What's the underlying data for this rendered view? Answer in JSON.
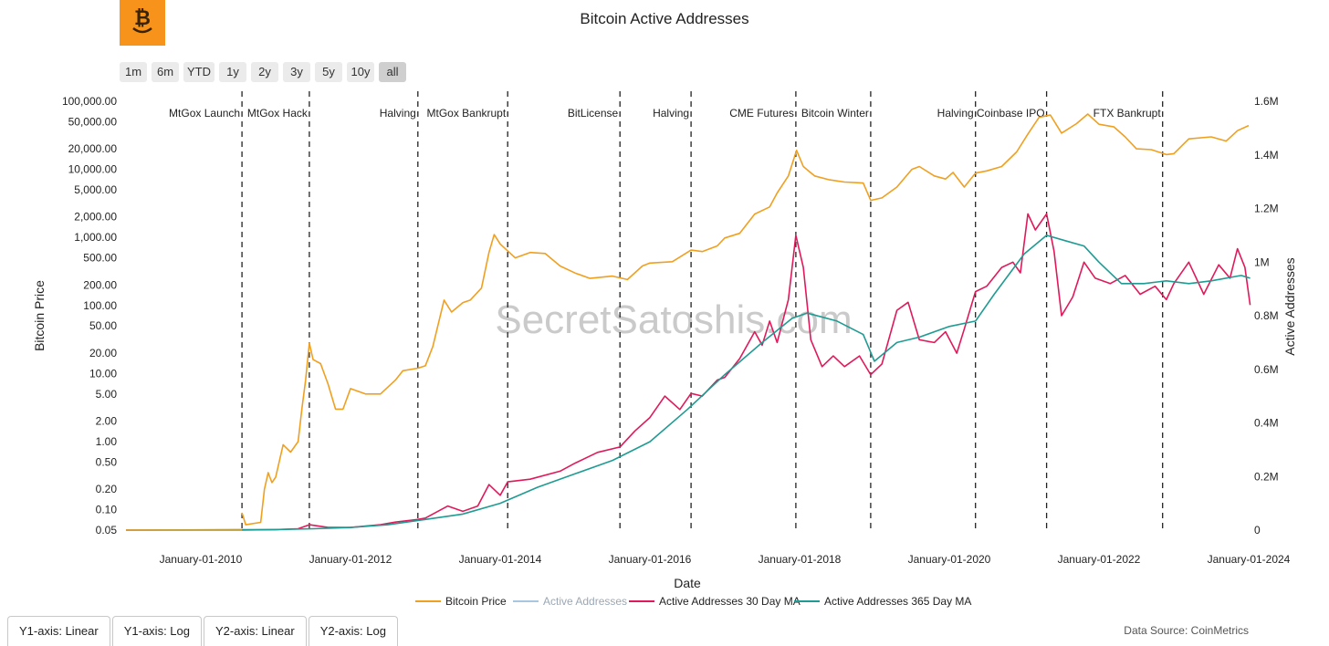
{
  "range_buttons": [
    "1m",
    "6m",
    "YTD",
    "1y",
    "2y",
    "3y",
    "5y",
    "10y",
    "all"
  ],
  "active_range": "all",
  "axis_buttons": [
    "Y1-axis: Linear",
    "Y1-axis: Log",
    "Y2-axis: Linear",
    "Y2-axis: Log"
  ],
  "source": "Data Source: CoinMetrics",
  "watermark": "SecretSatoshis.com",
  "colors": {
    "price": "#f0a020",
    "active": "#a9c6e0",
    "ma30": "#e0195a",
    "ma365": "#1f9b93",
    "logo": "#f7931a"
  },
  "chart_data": {
    "type": "line",
    "title": "Bitcoin Active Addresses",
    "xlabel": "Date",
    "ylabel": "Bitcoin Price",
    "y2label": "Active Addresses",
    "xlim": [
      2009.0,
      2024.0
    ],
    "y_scale": "log",
    "y_ticks": [
      {
        "v": 100000,
        "label": "100,000.00"
      },
      {
        "v": 50000,
        "label": "50,000.00"
      },
      {
        "v": 20000,
        "label": "20,000.00"
      },
      {
        "v": 10000,
        "label": "10,000.00"
      },
      {
        "v": 5000,
        "label": "5,000.00"
      },
      {
        "v": 2000,
        "label": "2,000.00"
      },
      {
        "v": 1000,
        "label": "1,000.00"
      },
      {
        "v": 500,
        "label": "500.00"
      },
      {
        "v": 200,
        "label": "200.00"
      },
      {
        "v": 100,
        "label": "100.00"
      },
      {
        "v": 50,
        "label": "50.00"
      },
      {
        "v": 20,
        "label": "20.00"
      },
      {
        "v": 10,
        "label": "10.00"
      },
      {
        "v": 5,
        "label": "5.00"
      },
      {
        "v": 2,
        "label": "2.00"
      },
      {
        "v": 1,
        "label": "1.00"
      },
      {
        "v": 0.5,
        "label": "0.50"
      },
      {
        "v": 0.2,
        "label": "0.20"
      },
      {
        "v": 0.1,
        "label": "0.10"
      },
      {
        "v": 0.05,
        "label": "0.05"
      }
    ],
    "y2_ticks": [
      {
        "v": 0,
        "label": "0"
      },
      {
        "v": 200000,
        "label": "0.2M"
      },
      {
        "v": 400000,
        "label": "0.4M"
      },
      {
        "v": 600000,
        "label": "0.6M"
      },
      {
        "v": 800000,
        "label": "0.8M"
      },
      {
        "v": 1000000,
        "label": "1M"
      },
      {
        "v": 1200000,
        "label": "1.2M"
      },
      {
        "v": 1400000,
        "label": "1.4M"
      },
      {
        "v": 1600000,
        "label": "1.6M"
      }
    ],
    "x_ticks": [
      {
        "v": 2010.0,
        "label": "January-01-2010"
      },
      {
        "v": 2012.0,
        "label": "January-01-2012"
      },
      {
        "v": 2014.0,
        "label": "January-01-2014"
      },
      {
        "v": 2016.0,
        "label": "January-01-2016"
      },
      {
        "v": 2018.0,
        "label": "January-01-2018"
      },
      {
        "v": 2020.0,
        "label": "January-01-2020"
      },
      {
        "v": 2022.0,
        "label": "January-01-2022"
      },
      {
        "v": 2024.0,
        "label": "January-01-2024"
      }
    ],
    "events": [
      {
        "x": 2010.55,
        "label": "MtGox Launch"
      },
      {
        "x": 2011.45,
        "label": "MtGox Hack"
      },
      {
        "x": 2012.9,
        "label": "Halving"
      },
      {
        "x": 2014.1,
        "label": "MtGox Bankrupt"
      },
      {
        "x": 2015.6,
        "label": "BitLicense"
      },
      {
        "x": 2016.55,
        "label": "Halving"
      },
      {
        "x": 2017.95,
        "label": "CME Futures"
      },
      {
        "x": 2018.95,
        "label": "Bitcoin Winter"
      },
      {
        "x": 2020.35,
        "label": "Halving"
      },
      {
        "x": 2021.3,
        "label": "Coinbase IPO"
      },
      {
        "x": 2022.85,
        "label": "FTX Bankrupt"
      }
    ],
    "series": [
      {
        "name": "Bitcoin Price",
        "axis": "y1",
        "points": [
          [
            2010.55,
            0.09
          ],
          [
            2010.6,
            0.06
          ],
          [
            2010.8,
            0.065
          ],
          [
            2010.85,
            0.2
          ],
          [
            2010.9,
            0.35
          ],
          [
            2010.95,
            0.25
          ],
          [
            2011.0,
            0.3
          ],
          [
            2011.1,
            0.9
          ],
          [
            2011.2,
            0.7
          ],
          [
            2011.3,
            1.0
          ],
          [
            2011.35,
            3
          ],
          [
            2011.4,
            8
          ],
          [
            2011.45,
            28
          ],
          [
            2011.5,
            16
          ],
          [
            2011.6,
            14
          ],
          [
            2011.7,
            7
          ],
          [
            2011.8,
            3
          ],
          [
            2011.9,
            3
          ],
          [
            2012.0,
            6
          ],
          [
            2012.2,
            5
          ],
          [
            2012.4,
            5
          ],
          [
            2012.6,
            8
          ],
          [
            2012.7,
            11
          ],
          [
            2012.9,
            12
          ],
          [
            2013.0,
            13
          ],
          [
            2013.1,
            25
          ],
          [
            2013.25,
            120
          ],
          [
            2013.35,
            80
          ],
          [
            2013.5,
            110
          ],
          [
            2013.6,
            120
          ],
          [
            2013.75,
            180
          ],
          [
            2013.85,
            600
          ],
          [
            2013.92,
            1100
          ],
          [
            2014.0,
            800
          ],
          [
            2014.2,
            500
          ],
          [
            2014.4,
            600
          ],
          [
            2014.6,
            580
          ],
          [
            2014.8,
            380
          ],
          [
            2015.0,
            300
          ],
          [
            2015.2,
            250
          ],
          [
            2015.5,
            270
          ],
          [
            2015.7,
            240
          ],
          [
            2015.9,
            380
          ],
          [
            2016.0,
            420
          ],
          [
            2016.3,
            440
          ],
          [
            2016.55,
            650
          ],
          [
            2016.7,
            620
          ],
          [
            2016.9,
            750
          ],
          [
            2017.0,
            980
          ],
          [
            2017.2,
            1150
          ],
          [
            2017.4,
            2200
          ],
          [
            2017.6,
            2800
          ],
          [
            2017.7,
            4500
          ],
          [
            2017.85,
            8000
          ],
          [
            2017.96,
            19000
          ],
          [
            2018.05,
            11000
          ],
          [
            2018.2,
            8000
          ],
          [
            2018.4,
            7000
          ],
          [
            2018.6,
            6500
          ],
          [
            2018.85,
            6300
          ],
          [
            2018.95,
            3500
          ],
          [
            2019.1,
            3800
          ],
          [
            2019.3,
            5500
          ],
          [
            2019.5,
            10000
          ],
          [
            2019.6,
            11000
          ],
          [
            2019.8,
            8000
          ],
          [
            2019.95,
            7200
          ],
          [
            2020.05,
            9000
          ],
          [
            2020.2,
            5500
          ],
          [
            2020.35,
            8800
          ],
          [
            2020.5,
            9500
          ],
          [
            2020.7,
            11000
          ],
          [
            2020.9,
            18000
          ],
          [
            2021.05,
            33000
          ],
          [
            2021.2,
            58000
          ],
          [
            2021.35,
            63000
          ],
          [
            2021.5,
            34000
          ],
          [
            2021.7,
            47000
          ],
          [
            2021.85,
            65000
          ],
          [
            2022.0,
            46000
          ],
          [
            2022.2,
            42000
          ],
          [
            2022.35,
            30000
          ],
          [
            2022.5,
            20000
          ],
          [
            2022.7,
            19500
          ],
          [
            2022.9,
            16500
          ],
          [
            2023.0,
            17000
          ],
          [
            2023.2,
            28000
          ],
          [
            2023.5,
            30000
          ],
          [
            2023.7,
            26000
          ],
          [
            2023.85,
            37000
          ],
          [
            2024.0,
            44000
          ]
        ]
      },
      {
        "name": "Active Addresses",
        "axis": "y2",
        "points": []
      },
      {
        "name": "Active Addresses 30 Day MA",
        "axis": "y2",
        "points": [
          [
            2009.0,
            0
          ],
          [
            2010.5,
            0
          ],
          [
            2011.0,
            2000
          ],
          [
            2011.3,
            5000
          ],
          [
            2011.45,
            20000
          ],
          [
            2011.7,
            10000
          ],
          [
            2012.0,
            10000
          ],
          [
            2012.4,
            20000
          ],
          [
            2012.6,
            30000
          ],
          [
            2012.9,
            40000
          ],
          [
            2013.0,
            45000
          ],
          [
            2013.3,
            90000
          ],
          [
            2013.5,
            70000
          ],
          [
            2013.7,
            90000
          ],
          [
            2013.85,
            170000
          ],
          [
            2014.0,
            130000
          ],
          [
            2014.1,
            180000
          ],
          [
            2014.4,
            190000
          ],
          [
            2014.8,
            220000
          ],
          [
            2015.0,
            250000
          ],
          [
            2015.3,
            290000
          ],
          [
            2015.6,
            310000
          ],
          [
            2015.8,
            370000
          ],
          [
            2016.0,
            420000
          ],
          [
            2016.2,
            500000
          ],
          [
            2016.4,
            450000
          ],
          [
            2016.55,
            510000
          ],
          [
            2016.7,
            500000
          ],
          [
            2016.9,
            560000
          ],
          [
            2017.0,
            570000
          ],
          [
            2017.2,
            640000
          ],
          [
            2017.4,
            740000
          ],
          [
            2017.5,
            690000
          ],
          [
            2017.6,
            780000
          ],
          [
            2017.7,
            700000
          ],
          [
            2017.85,
            860000
          ],
          [
            2017.95,
            1100000
          ],
          [
            2018.05,
            980000
          ],
          [
            2018.15,
            710000
          ],
          [
            2018.3,
            610000
          ],
          [
            2018.45,
            650000
          ],
          [
            2018.6,
            610000
          ],
          [
            2018.8,
            650000
          ],
          [
            2018.95,
            580000
          ],
          [
            2019.1,
            620000
          ],
          [
            2019.3,
            820000
          ],
          [
            2019.45,
            850000
          ],
          [
            2019.6,
            710000
          ],
          [
            2019.8,
            700000
          ],
          [
            2019.95,
            740000
          ],
          [
            2020.1,
            660000
          ],
          [
            2020.2,
            750000
          ],
          [
            2020.35,
            890000
          ],
          [
            2020.5,
            910000
          ],
          [
            2020.7,
            980000
          ],
          [
            2020.85,
            1000000
          ],
          [
            2020.95,
            960000
          ],
          [
            2021.05,
            1180000
          ],
          [
            2021.15,
            1120000
          ],
          [
            2021.3,
            1180000
          ],
          [
            2021.4,
            1040000
          ],
          [
            2021.5,
            800000
          ],
          [
            2021.65,
            870000
          ],
          [
            2021.8,
            1000000
          ],
          [
            2021.95,
            940000
          ],
          [
            2022.15,
            920000
          ],
          [
            2022.35,
            950000
          ],
          [
            2022.55,
            880000
          ],
          [
            2022.75,
            910000
          ],
          [
            2022.9,
            860000
          ],
          [
            2023.0,
            920000
          ],
          [
            2023.2,
            1000000
          ],
          [
            2023.4,
            880000
          ],
          [
            2023.6,
            990000
          ],
          [
            2023.75,
            940000
          ],
          [
            2023.85,
            1050000
          ],
          [
            2023.95,
            980000
          ],
          [
            2024.02,
            840000
          ]
        ]
      },
      {
        "name": "Active Addresses 365 Day MA",
        "axis": "y2",
        "points": [
          [
            2009.0,
            0
          ],
          [
            2011.0,
            2000
          ],
          [
            2011.5,
            5000
          ],
          [
            2012.0,
            10000
          ],
          [
            2012.5,
            20000
          ],
          [
            2013.0,
            40000
          ],
          [
            2013.5,
            60000
          ],
          [
            2014.0,
            100000
          ],
          [
            2014.5,
            160000
          ],
          [
            2015.0,
            210000
          ],
          [
            2015.5,
            260000
          ],
          [
            2016.0,
            330000
          ],
          [
            2016.5,
            450000
          ],
          [
            2017.0,
            580000
          ],
          [
            2017.5,
            700000
          ],
          [
            2017.9,
            790000
          ],
          [
            2018.1,
            810000
          ],
          [
            2018.5,
            780000
          ],
          [
            2018.85,
            730000
          ],
          [
            2019.0,
            630000
          ],
          [
            2019.3,
            700000
          ],
          [
            2019.6,
            720000
          ],
          [
            2020.0,
            760000
          ],
          [
            2020.35,
            780000
          ],
          [
            2020.6,
            880000
          ],
          [
            2021.0,
            1030000
          ],
          [
            2021.3,
            1100000
          ],
          [
            2021.55,
            1080000
          ],
          [
            2021.8,
            1060000
          ],
          [
            2022.0,
            1000000
          ],
          [
            2022.3,
            920000
          ],
          [
            2022.6,
            920000
          ],
          [
            2022.9,
            930000
          ],
          [
            2023.2,
            920000
          ],
          [
            2023.5,
            930000
          ],
          [
            2023.9,
            950000
          ],
          [
            2024.02,
            940000
          ]
        ]
      }
    ]
  }
}
